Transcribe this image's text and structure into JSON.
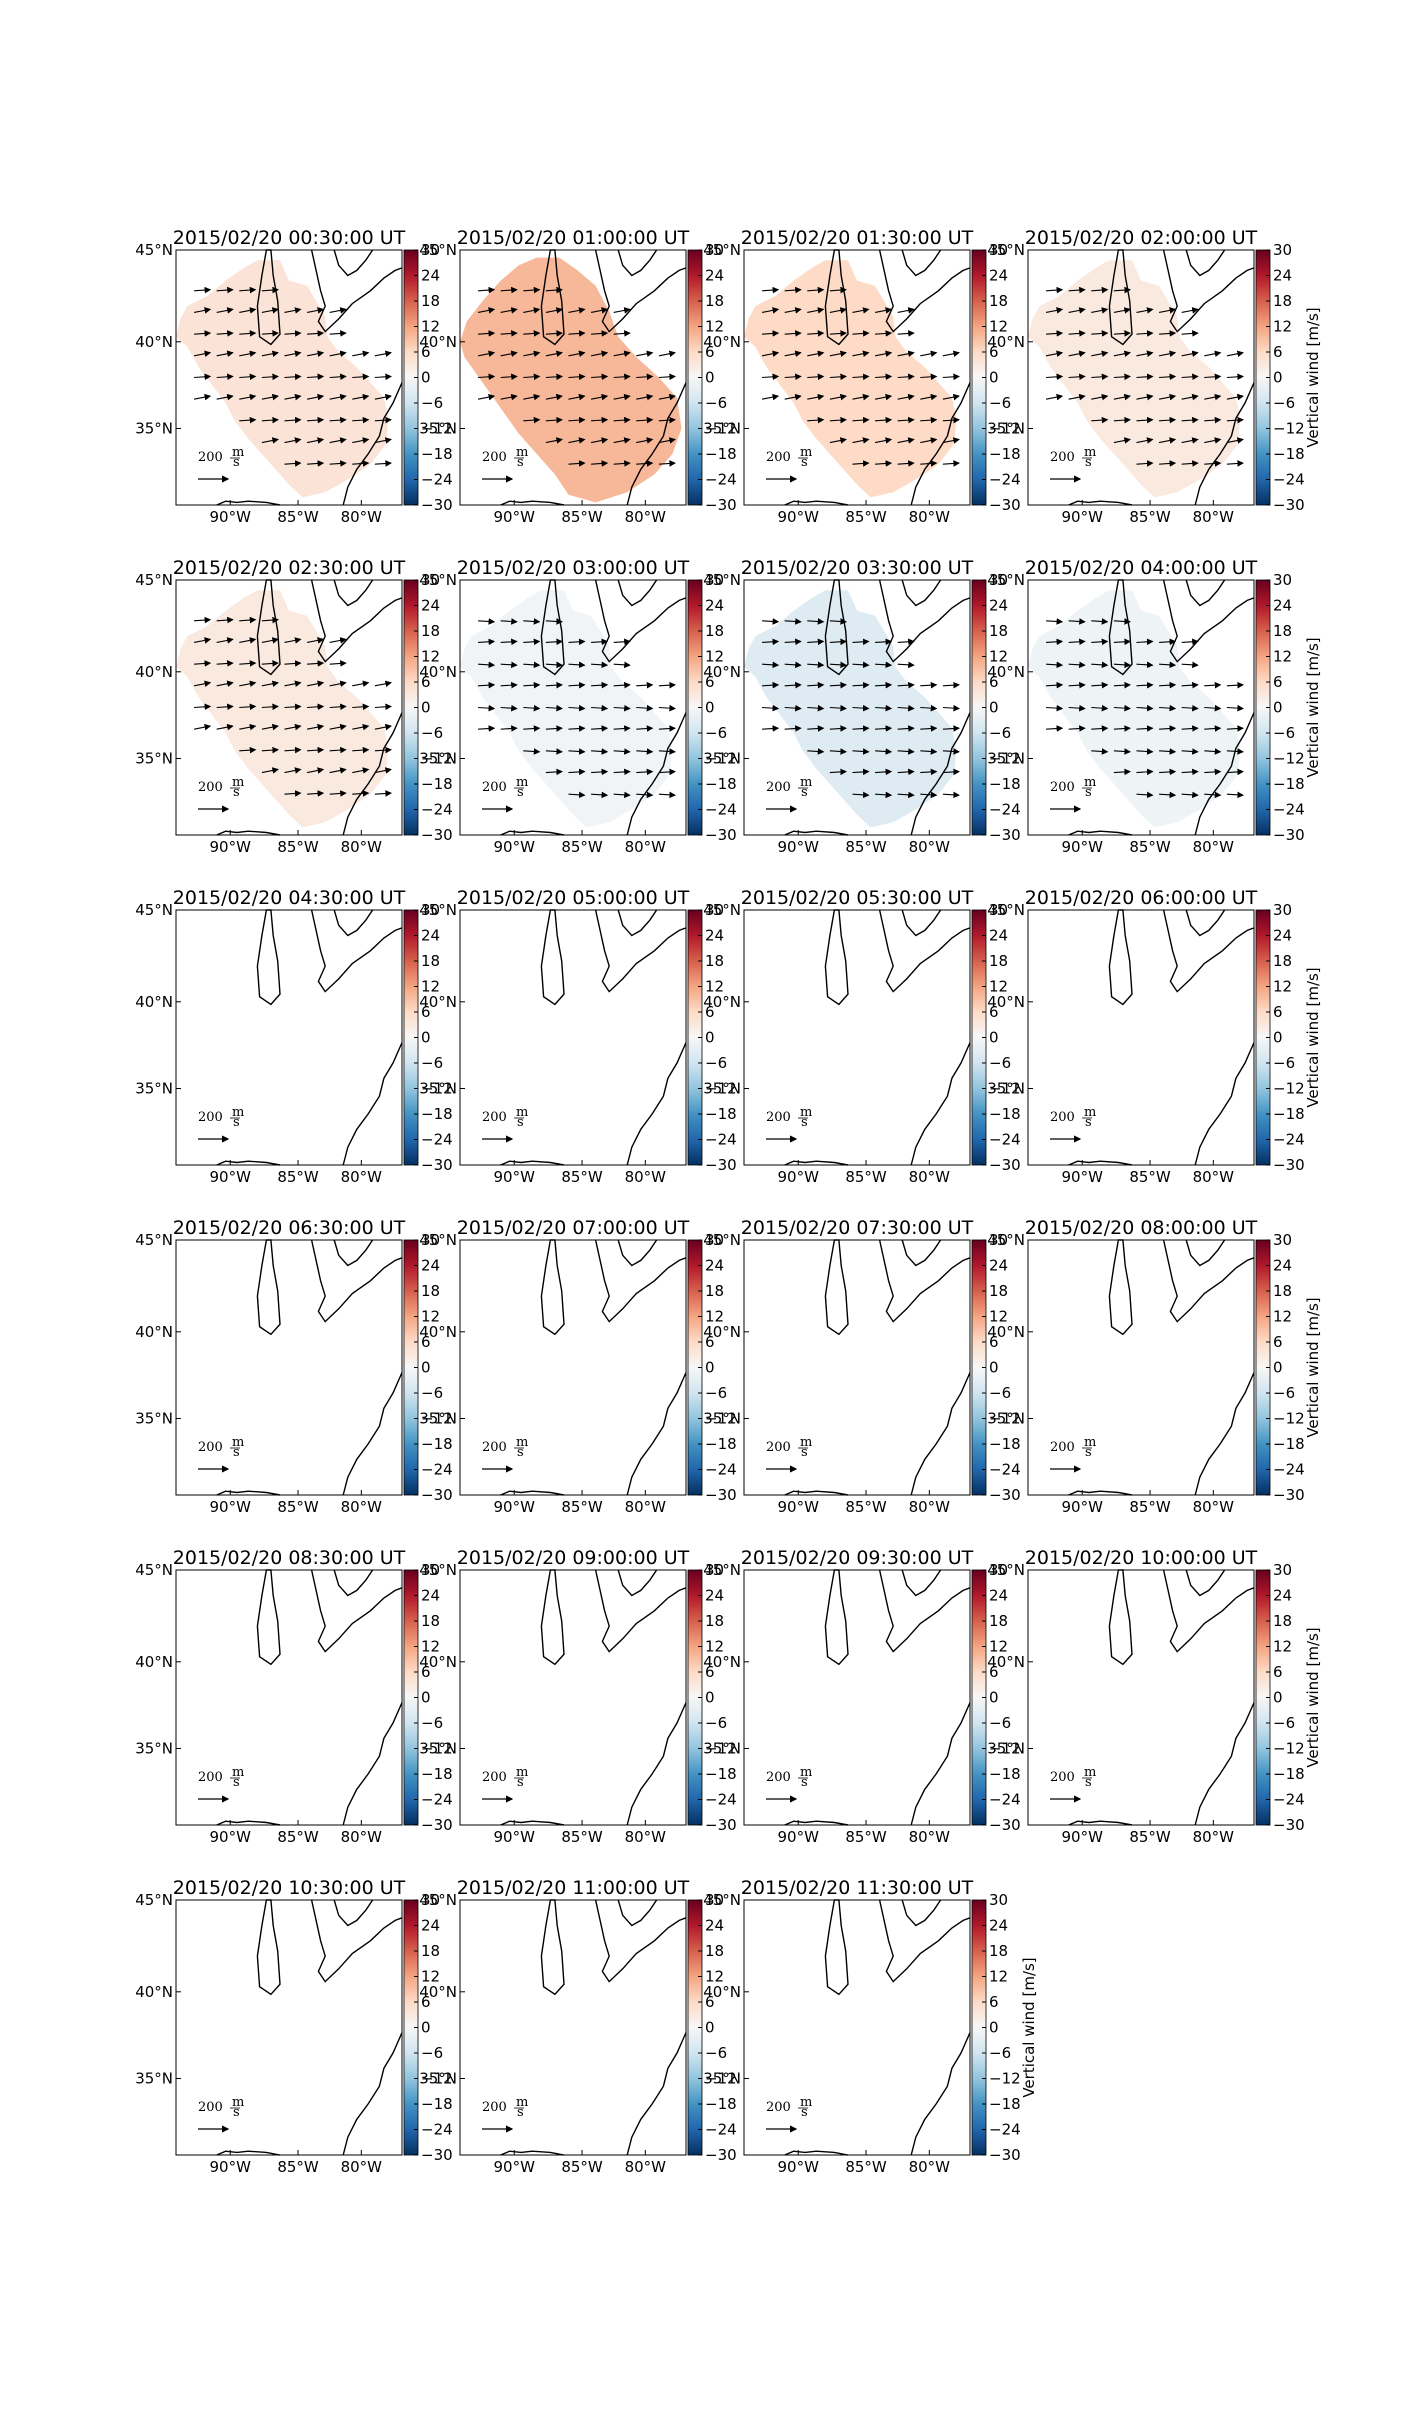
{
  "figure": {
    "colorbar": {
      "label": "Vertical wind [m/s]",
      "ticks": [
        30,
        24,
        18,
        12,
        6,
        0,
        -6,
        -12,
        -18,
        -24,
        -30
      ],
      "range": [
        -30,
        30
      ],
      "colormap": "RdBu_r",
      "colors": [
        "#053061",
        "#2166ac",
        "#4393c3",
        "#92c5de",
        "#d1e5f0",
        "#f7f7f7",
        "#fddbc7",
        "#f4a582",
        "#d6604d",
        "#b2182b",
        "#67001f"
      ]
    },
    "map": {
      "lon_ticks": [
        "90°W",
        "85°W",
        "80°W"
      ],
      "lat_ticks": [
        "45°N",
        "40°N",
        "35°N"
      ],
      "lon_range": [
        -94,
        -77
      ],
      "lat_range": [
        30.5,
        45
      ],
      "region_color_note": "shaded ground-track region colored by mean vertical wind",
      "vector_scale": {
        "value_text": "200",
        "unit_num": "m",
        "unit_den": "s"
      }
    },
    "panels": [
      {
        "title": "2015/02/20 00:30:00 UT",
        "vertical_wind": 4,
        "has_data": true
      },
      {
        "title": "2015/02/20 01:00:00 UT",
        "vertical_wind": 10,
        "has_data": true
      },
      {
        "title": "2015/02/20 01:30:00 UT",
        "vertical_wind": 6,
        "has_data": true
      },
      {
        "title": "2015/02/20 02:00:00 UT",
        "vertical_wind": 3,
        "has_data": true
      },
      {
        "title": "2015/02/20 02:30:00 UT",
        "vertical_wind": 3,
        "has_data": true
      },
      {
        "title": "2015/02/20 03:00:00 UT",
        "vertical_wind": -1,
        "has_data": true
      },
      {
        "title": "2015/02/20 03:30:00 UT",
        "vertical_wind": -4,
        "has_data": true
      },
      {
        "title": "2015/02/20 04:00:00 UT",
        "vertical_wind": -1.5,
        "has_data": true
      },
      {
        "title": "2015/02/20 04:30:00 UT",
        "has_data": false
      },
      {
        "title": "2015/02/20 05:00:00 UT",
        "has_data": false
      },
      {
        "title": "2015/02/20 05:30:00 UT",
        "has_data": false
      },
      {
        "title": "2015/02/20 06:00:00 UT",
        "has_data": false
      },
      {
        "title": "2015/02/20 06:30:00 UT",
        "has_data": false
      },
      {
        "title": "2015/02/20 07:00:00 UT",
        "has_data": false
      },
      {
        "title": "2015/02/20 07:30:00 UT",
        "has_data": false
      },
      {
        "title": "2015/02/20 08:00:00 UT",
        "has_data": false
      },
      {
        "title": "2015/02/20 08:30:00 UT",
        "has_data": false
      },
      {
        "title": "2015/02/20 09:00:00 UT",
        "has_data": false
      },
      {
        "title": "2015/02/20 09:30:00 UT",
        "has_data": false
      },
      {
        "title": "2015/02/20 10:00:00 UT",
        "has_data": false
      },
      {
        "title": "2015/02/20 10:30:00 UT",
        "has_data": false
      },
      {
        "title": "2015/02/20 11:00:00 UT",
        "has_data": false
      },
      {
        "title": "2015/02/20 11:30:00 UT",
        "has_data": false
      }
    ]
  }
}
